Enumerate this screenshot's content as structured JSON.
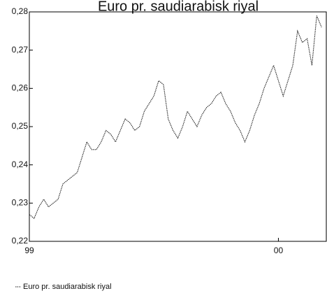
{
  "chart_data": {
    "type": "line",
    "title": "Euro pr. saudiarabisk riyal",
    "x": [
      0,
      1,
      2,
      3,
      4,
      5,
      6,
      7,
      8,
      9,
      10,
      11,
      12,
      13,
      14,
      15,
      16,
      17,
      18,
      19,
      20,
      21,
      22,
      23,
      24,
      25,
      26,
      27,
      28,
      29,
      30,
      31,
      32,
      33,
      34,
      35,
      36,
      37,
      38,
      39,
      40,
      41,
      42,
      43,
      44,
      45,
      46,
      47,
      48,
      49,
      50,
      51,
      52,
      53,
      54,
      55,
      56,
      57,
      58,
      59,
      60,
      61
    ],
    "series": [
      {
        "name": "Euro pr. saudiarabisk riyal",
        "color": "#222222",
        "values": [
          0.227,
          0.226,
          0.229,
          0.231,
          0.229,
          0.23,
          0.231,
          0.235,
          0.236,
          0.237,
          0.238,
          0.242,
          0.246,
          0.244,
          0.244,
          0.246,
          0.249,
          0.248,
          0.246,
          0.249,
          0.252,
          0.251,
          0.249,
          0.25,
          0.254,
          0.256,
          0.258,
          0.262,
          0.261,
          0.252,
          0.249,
          0.247,
          0.25,
          0.254,
          0.252,
          0.25,
          0.253,
          0.255,
          0.256,
          0.258,
          0.259,
          0.256,
          0.254,
          0.251,
          0.249,
          0.246,
          0.249,
          0.253,
          0.256,
          0.26,
          0.263,
          0.266,
          0.262,
          0.258,
          0.262,
          0.266,
          0.275,
          0.272,
          0.273,
          0.266,
          0.279,
          0.276
        ]
      }
    ],
    "xlim": [
      0,
      62
    ],
    "xticks": [
      {
        "value": 0,
        "label": "99"
      },
      {
        "value": 52,
        "label": "00"
      }
    ],
    "ylim": [
      0.22,
      0.28
    ],
    "yticks": [
      {
        "value": 0.22,
        "label": "0,22"
      },
      {
        "value": 0.23,
        "label": "0,23"
      },
      {
        "value": 0.24,
        "label": "0,24"
      },
      {
        "value": 0.25,
        "label": "0,25"
      },
      {
        "value": 0.26,
        "label": "0,26"
      },
      {
        "value": 0.27,
        "label": "0,27"
      },
      {
        "value": 0.28,
        "label": "0,28"
      }
    ],
    "grid": false,
    "legend": "bottom-left"
  }
}
